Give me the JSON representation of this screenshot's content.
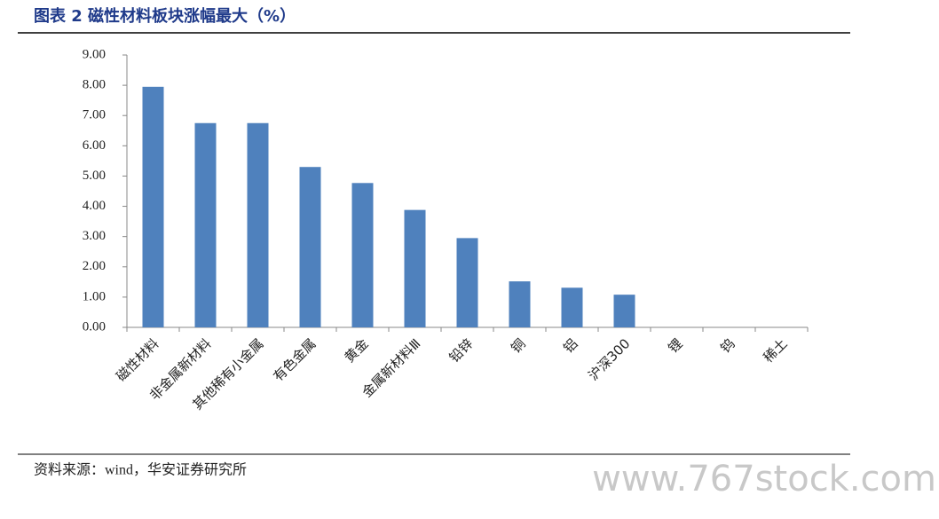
{
  "chart_data": {
    "type": "bar",
    "title": "图表 2 磁性材料板块涨幅最大（%）",
    "categories": [
      "磁性材料",
      "非金属新材料",
      "其他稀有小金属",
      "有色金属",
      "黄金",
      "金属新材料Ⅲ",
      "铅锌",
      "铜",
      "铝",
      "沪深300",
      "锂",
      "钨",
      "稀土"
    ],
    "values": [
      7.95,
      6.75,
      6.75,
      5.3,
      4.77,
      3.88,
      2.95,
      1.52,
      1.31,
      1.08,
      0,
      0,
      0
    ],
    "color": "#4f81bd",
    "ylim": [
      0,
      9
    ],
    "yticks": [
      {
        "value": 0,
        "label": "0.00"
      },
      {
        "value": 1,
        "label": "1.00"
      },
      {
        "value": 2,
        "label": "2.00"
      },
      {
        "value": 3,
        "label": "3.00"
      },
      {
        "value": 4,
        "label": "4.00"
      },
      {
        "value": 5,
        "label": "5.00"
      },
      {
        "value": 6,
        "label": "6.00"
      },
      {
        "value": 7,
        "label": "7.00"
      },
      {
        "value": 8,
        "label": "8.00"
      },
      {
        "value": 9,
        "label": "9.00"
      }
    ],
    "grid": false,
    "source": "资料来源：wind，华安证券研究所",
    "watermark": "www.767stock.com"
  }
}
